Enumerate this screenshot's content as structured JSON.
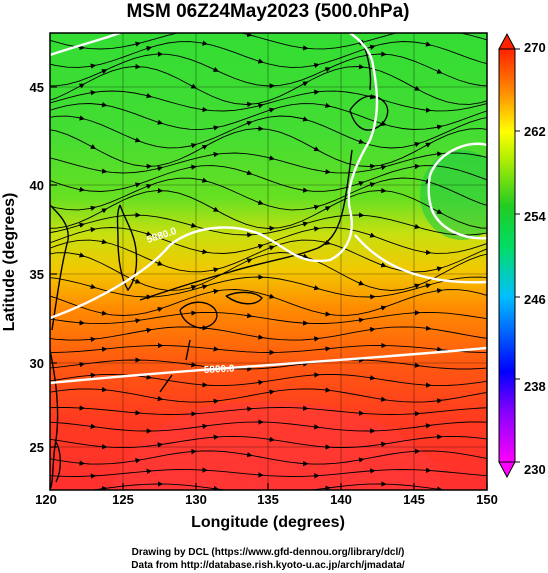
{
  "title": "MSM 06Z24May2023 (500.0hPa)",
  "x_axis": {
    "label": "Longitude (degrees)",
    "ticks": [
      "120",
      "125",
      "130",
      "135",
      "140",
      "145",
      "150"
    ],
    "range": [
      120,
      150
    ]
  },
  "y_axis": {
    "label": "Latitude  (degrees)",
    "ticks": [
      "25",
      "30",
      "35",
      "40",
      "45"
    ],
    "range": [
      22.4,
      47.6
    ]
  },
  "colorbar": {
    "ticks": [
      "230",
      "238",
      "246",
      "254",
      "262",
      "270"
    ],
    "range": [
      230,
      270
    ],
    "colors": [
      "#ff00ff",
      "#0000ff",
      "#00bfff",
      "#00cc44",
      "#b8f000",
      "#ffff00",
      "#ffaa00",
      "#ff5500",
      "#ff2200"
    ]
  },
  "contours": [
    {
      "value": 5880,
      "label": "5880.0",
      "kind": "geopotential-height"
    },
    {
      "value": 5800,
      "label": "5800.0",
      "kind": "geopotential-height"
    }
  ],
  "credits": {
    "line1": "Drawing by DCL (https://www.gfd-dennou.org/library/dcl/)",
    "line2": "Data from http://database.rish.kyoto-u.ac.jp/arch/jmadata/"
  }
}
